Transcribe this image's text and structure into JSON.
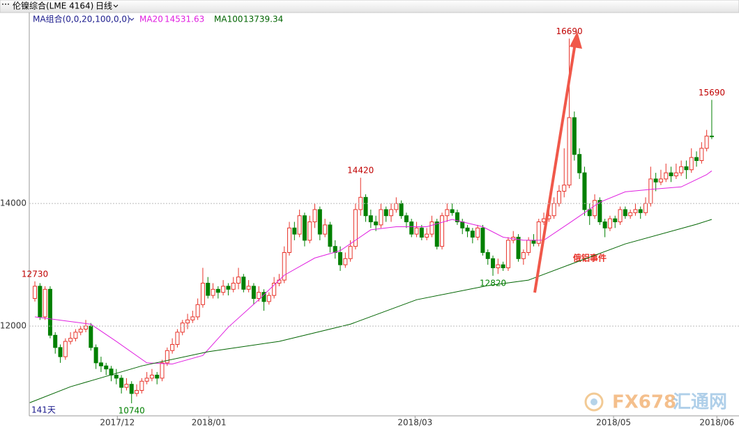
{
  "chart_data": {
    "type": "candlestick",
    "title": "伦镍综合(LME 4164)",
    "period": "日线",
    "indicator": "MA组合(0,0,20,100,0,0)",
    "bar_count_label": "141天",
    "annotation": "俄铝事件",
    "watermark": "FX678",
    "watermark_cn": "汇通网",
    "up_color": "#e8332a",
    "down_color": "#008000",
    "xlim": [
      -1.1,
      138.35
    ],
    "xticks": [
      {
        "value": 16.2,
        "label": "2017/12"
      },
      {
        "value": 34.2,
        "label": "2018/01"
      },
      {
        "value": 74.7,
        "label": "2018/03"
      },
      {
        "value": 113.7,
        "label": "2018/05"
      },
      {
        "value": 134,
        "label": "2018/06"
      }
    ],
    "ylim": [
      10535,
      17115
    ],
    "yticks": [
      12000,
      14000
    ],
    "grid": true,
    "open": [
      12450,
      12650,
      12150,
      12600,
      11850,
      11650,
      11500,
      11750,
      11800,
      11900,
      11950,
      12000,
      11650,
      11400,
      11350,
      11300,
      11200,
      11150,
      11000,
      11050,
      10900,
      10950,
      11100,
      11150,
      11200,
      11150,
      11400,
      11600,
      11700,
      11900,
      12050,
      12100,
      12150,
      12350,
      12700,
      12500,
      12600,
      12550,
      12650,
      12600,
      12700,
      12800,
      12600,
      12650,
      12450,
      12550,
      12400,
      12500,
      12700,
      12750,
      13200,
      13600,
      13500,
      13800,
      13400,
      13700,
      13900,
      13500,
      13650,
      13300,
      13200,
      13000,
      13100,
      13300,
      13900,
      14100,
      13800,
      13700,
      13650,
      13900,
      13800,
      13900,
      14000,
      13800,
      13700,
      13500,
      13600,
      13450,
      13500,
      13700,
      13300,
      13800,
      13900,
      13850,
      13700,
      13600,
      13550,
      13450,
      13600,
      13200,
      13100,
      12950,
      13000,
      12950,
      13400,
      13450,
      13100,
      13200,
      13400,
      13350,
      13700,
      13750,
      13800,
      14000,
      14200,
      14300,
      15400,
      14800,
      14500,
      13900,
      13800,
      14050,
      13700,
      13600,
      13750,
      13700,
      13900,
      13800,
      13850,
      13900,
      13850,
      14000,
      14400,
      14350,
      14400,
      14500,
      14450,
      14500,
      14600,
      14550,
      14750,
      14700,
      14900,
      15100
    ],
    "high": [
      12730,
      12700,
      12650,
      12650,
      11900,
      11700,
      11800,
      11900,
      11950,
      12000,
      12100,
      12050,
      11700,
      11500,
      11400,
      11350,
      11300,
      11200,
      11150,
      11100,
      11050,
      11150,
      11250,
      11300,
      11250,
      11450,
      11650,
      11800,
      11950,
      12100,
      12200,
      12250,
      12450,
      12950,
      12800,
      12700,
      12650,
      12750,
      12700,
      12800,
      12950,
      12850,
      12750,
      12700,
      12650,
      12600,
      12550,
      12800,
      12850,
      13300,
      13700,
      13700,
      13900,
      13850,
      13800,
      14000,
      13950,
      13750,
      13700,
      13400,
      13300,
      13200,
      13400,
      14000,
      14420,
      14150,
      13900,
      13800,
      14000,
      13950,
      14000,
      14100,
      14050,
      13850,
      13750,
      13700,
      13650,
      13600,
      13800,
      13750,
      13850,
      14000,
      14000,
      13900,
      13750,
      13650,
      13600,
      13650,
      13650,
      13250,
      13150,
      13100,
      13050,
      13450,
      13550,
      13500,
      13250,
      13450,
      13500,
      13750,
      13850,
      13900,
      14100,
      14300,
      14900,
      16690,
      15500,
      14900,
      14600,
      14000,
      14150,
      14100,
      13750,
      13800,
      13800,
      13950,
      13950,
      13900,
      14000,
      13950,
      14100,
      14600,
      14500,
      14550,
      14650,
      14600,
      14650,
      14700,
      14700,
      14900,
      14850,
      15000,
      15200,
      15690
    ],
    "low": [
      12400,
      12100,
      12100,
      11800,
      11550,
      11400,
      11450,
      11700,
      11750,
      11850,
      11900,
      11600,
      11300,
      11250,
      11200,
      11100,
      11050,
      10900,
      10950,
      10740,
      10850,
      10900,
      11050,
      11100,
      11050,
      11100,
      11350,
      11550,
      11650,
      11850,
      11950,
      12050,
      12100,
      12300,
      12450,
      12450,
      12450,
      12500,
      12500,
      12550,
      12600,
      12550,
      12550,
      12350,
      12400,
      12250,
      12350,
      12450,
      12650,
      12700,
      13150,
      13400,
      13450,
      13300,
      13350,
      13600,
      13400,
      13450,
      13200,
      13100,
      12900,
      12950,
      13050,
      13250,
      13800,
      13700,
      13600,
      13550,
      13600,
      13700,
      13700,
      13850,
      13750,
      13600,
      13450,
      13450,
      13400,
      13400,
      13450,
      13250,
      13250,
      13700,
      13800,
      13650,
      13500,
      13450,
      13350,
      13400,
      13150,
      13000,
      12820,
      12850,
      12900,
      12900,
      13350,
      13050,
      13000,
      13150,
      13300,
      13300,
      13650,
      13700,
      13750,
      13950,
      14100,
      14250,
      14700,
      14400,
      13800,
      13650,
      13750,
      13650,
      13450,
      13550,
      13600,
      13650,
      13750,
      13750,
      13800,
      13750,
      13800,
      13950,
      14200,
      14300,
      14350,
      14350,
      14400,
      14450,
      14400,
      14500,
      14600,
      14650,
      14850,
      15050
    ],
    "close": [
      12650,
      12150,
      12600,
      11850,
      11650,
      11500,
      11750,
      11800,
      11900,
      11950,
      12000,
      11650,
      11400,
      11350,
      11300,
      11200,
      11150,
      11000,
      11050,
      10900,
      10950,
      11100,
      11150,
      11200,
      11150,
      11400,
      11600,
      11700,
      11900,
      12050,
      12100,
      12150,
      12350,
      12700,
      12500,
      12600,
      12550,
      12650,
      12600,
      12700,
      12800,
      12600,
      12650,
      12450,
      12550,
      12400,
      12500,
      12700,
      12750,
      13200,
      13600,
      13500,
      13800,
      13400,
      13700,
      13900,
      13500,
      13650,
      13300,
      13200,
      13000,
      13100,
      13300,
      13900,
      14100,
      13800,
      13700,
      13650,
      13900,
      13800,
      13900,
      14000,
      13800,
      13700,
      13500,
      13600,
      13450,
      13500,
      13700,
      13300,
      13800,
      13900,
      13850,
      13700,
      13600,
      13550,
      13450,
      13600,
      13200,
      13100,
      12950,
      13000,
      12950,
      13400,
      13450,
      13100,
      13200,
      13400,
      13350,
      13700,
      13750,
      13800,
      14000,
      14200,
      14300,
      15400,
      14800,
      14500,
      13900,
      13800,
      14050,
      13700,
      13600,
      13750,
      13700,
      13900,
      13800,
      13850,
      13900,
      13850,
      14000,
      14400,
      14350,
      14400,
      14500,
      14450,
      14500,
      14600,
      14550,
      14750,
      14700,
      14900,
      15100,
      15100
    ],
    "ma": [
      {
        "name": "MA20",
        "color": "#e020e0",
        "x": [
          0,
          11,
          16,
          22,
          27,
          33,
          38,
          44,
          49,
          55,
          60,
          66,
          71,
          77,
          82,
          88,
          92,
          96,
          100,
          105,
          111,
          116,
          121,
          127,
          132,
          133
        ],
        "values": [
          12150,
          12030,
          11750,
          11400,
          11380,
          11520,
          11980,
          12430,
          12830,
          13110,
          13230,
          13570,
          13620,
          13620,
          13740,
          13620,
          13450,
          13400,
          13400,
          13680,
          14020,
          14190,
          14230,
          14270,
          14470,
          14531.63
        ]
      },
      {
        "name": "MA100",
        "color": "#006400",
        "x": [
          -1,
          7,
          21,
          34,
          48,
          62,
          75,
          89,
          97,
          105,
          116,
          130,
          133
        ],
        "values": [
          10750,
          11010,
          11350,
          11580,
          11750,
          12030,
          12430,
          12660,
          12750,
          13000,
          13340,
          13660,
          13739.34
        ]
      }
    ]
  }
}
